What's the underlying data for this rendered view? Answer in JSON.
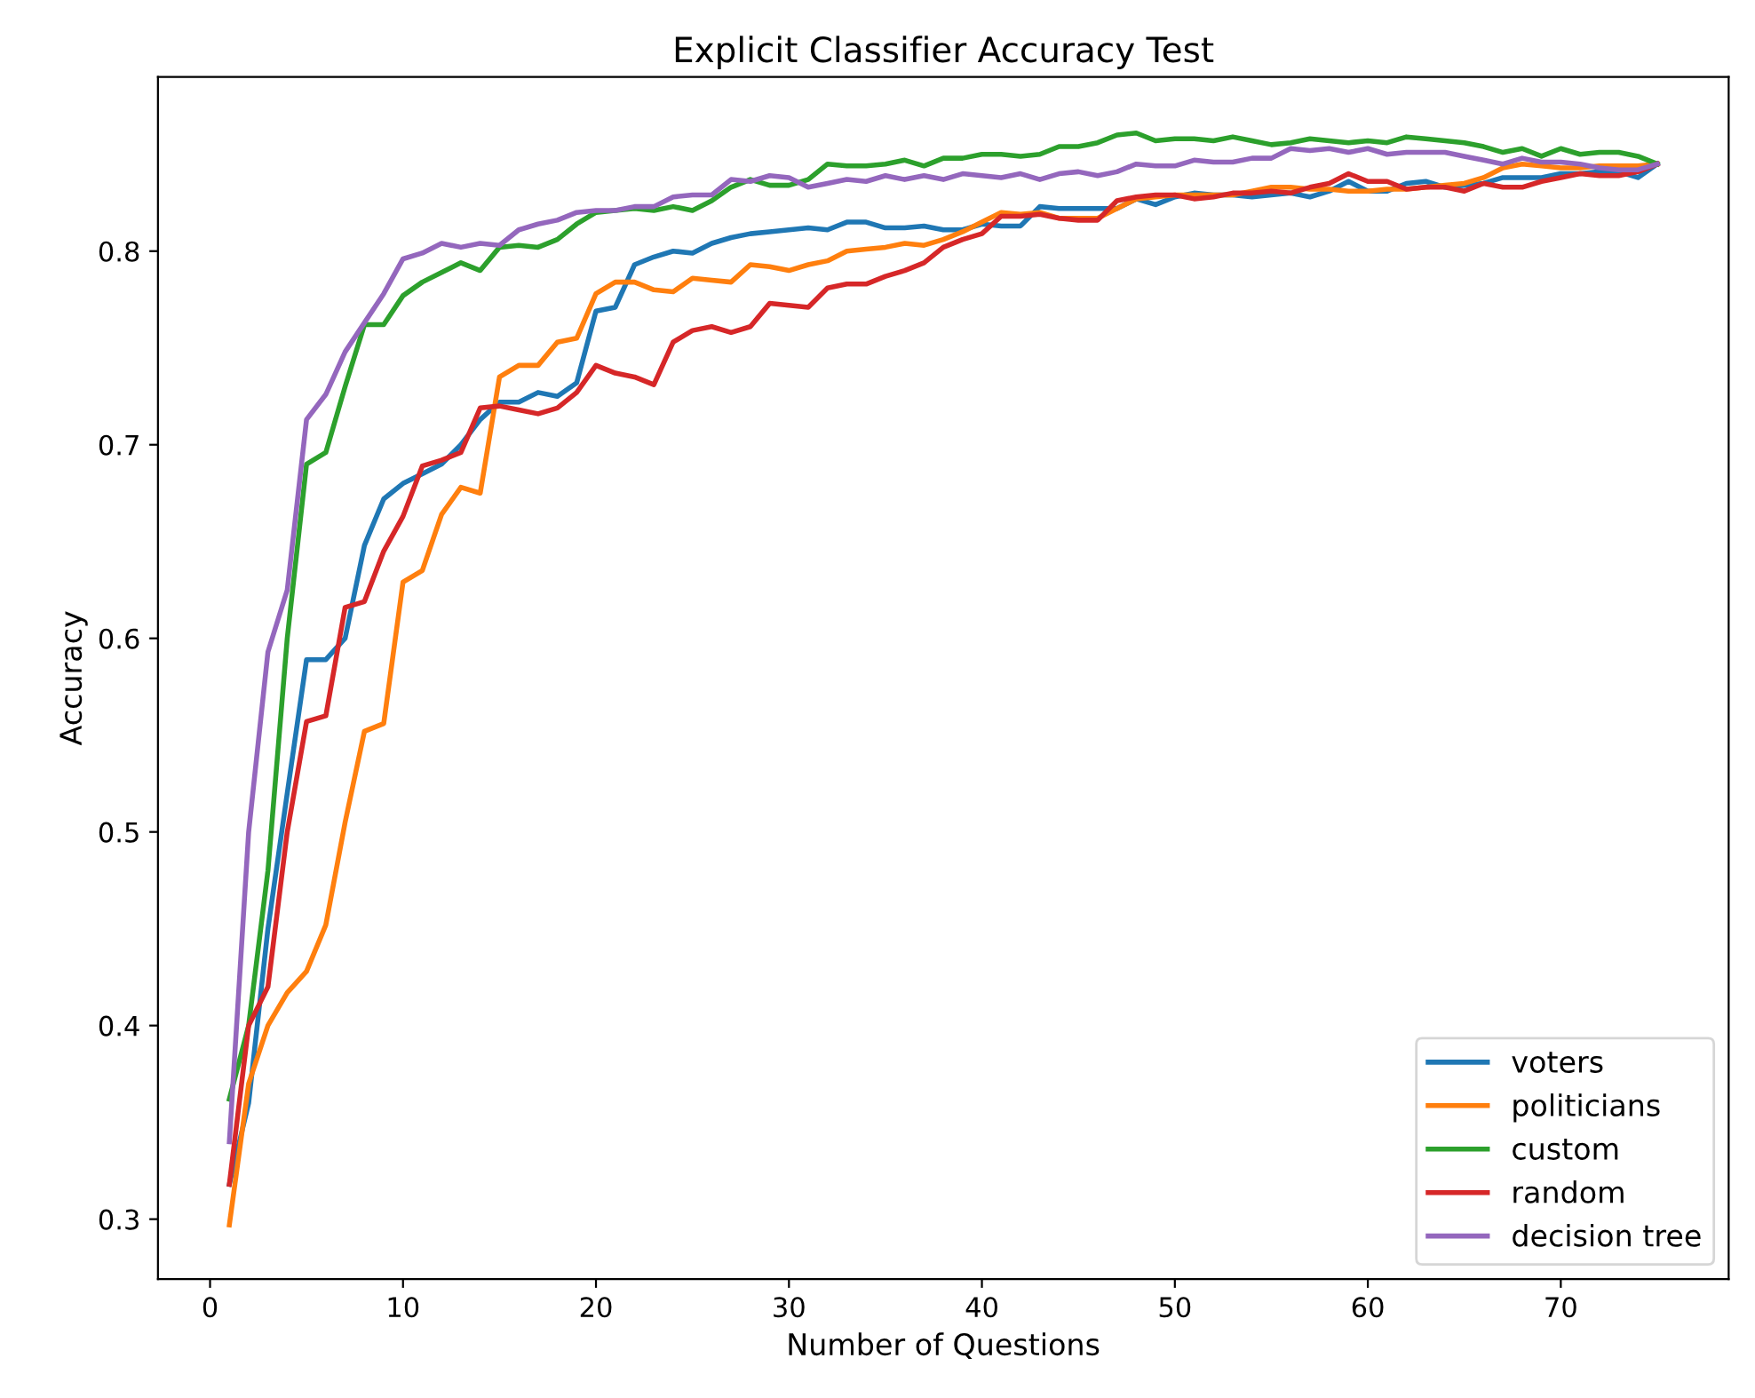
{
  "chart_data": {
    "type": "line",
    "title": "Explicit Classifier Accuracy Test",
    "xlabel": "Number of Questions",
    "ylabel": "Accuracy",
    "x": [
      1,
      2,
      3,
      4,
      5,
      6,
      7,
      8,
      9,
      10,
      11,
      12,
      13,
      14,
      15,
      16,
      17,
      18,
      19,
      20,
      21,
      22,
      23,
      24,
      25,
      26,
      27,
      28,
      29,
      30,
      31,
      32,
      33,
      34,
      35,
      36,
      37,
      38,
      39,
      40,
      41,
      42,
      43,
      44,
      45,
      46,
      47,
      48,
      49,
      50,
      51,
      52,
      53,
      54,
      55,
      56,
      57,
      58,
      59,
      60,
      61,
      62,
      63,
      64,
      65,
      66,
      67,
      68,
      69,
      70,
      71,
      72,
      73,
      74,
      75
    ],
    "series": [
      {
        "name": "voters",
        "color": "#1f77b4",
        "values": [
          0.318,
          0.36,
          0.45,
          0.52,
          0.589,
          0.589,
          0.6,
          0.648,
          0.672,
          0.68,
          0.685,
          0.69,
          0.7,
          0.713,
          0.722,
          0.722,
          0.727,
          0.725,
          0.732,
          0.769,
          0.771,
          0.793,
          0.797,
          0.8,
          0.799,
          0.804,
          0.807,
          0.809,
          0.81,
          0.811,
          0.812,
          0.811,
          0.815,
          0.815,
          0.812,
          0.812,
          0.813,
          0.811,
          0.811,
          0.814,
          0.813,
          0.813,
          0.823,
          0.822,
          0.822,
          0.822,
          0.822,
          0.827,
          0.824,
          0.828,
          0.83,
          0.829,
          0.829,
          0.828,
          0.829,
          0.83,
          0.828,
          0.831,
          0.836,
          0.831,
          0.831,
          0.835,
          0.836,
          0.833,
          0.834,
          0.835,
          0.838,
          0.838,
          0.838,
          0.84,
          0.84,
          0.841,
          0.841,
          0.838,
          0.845
        ]
      },
      {
        "name": "politicians",
        "color": "#ff7f0e",
        "values": [
          0.297,
          0.37,
          0.4,
          0.417,
          0.428,
          0.452,
          0.505,
          0.552,
          0.556,
          0.629,
          0.635,
          0.664,
          0.678,
          0.675,
          0.735,
          0.741,
          0.741,
          0.753,
          0.755,
          0.778,
          0.784,
          0.784,
          0.78,
          0.779,
          0.786,
          0.785,
          0.784,
          0.793,
          0.792,
          0.79,
          0.793,
          0.795,
          0.8,
          0.801,
          0.802,
          0.804,
          0.803,
          0.806,
          0.81,
          0.815,
          0.82,
          0.819,
          0.82,
          0.817,
          0.817,
          0.817,
          0.822,
          0.827,
          0.828,
          0.829,
          0.829,
          0.829,
          0.829,
          0.831,
          0.833,
          0.833,
          0.832,
          0.832,
          0.831,
          0.831,
          0.832,
          0.832,
          0.833,
          0.834,
          0.835,
          0.838,
          0.843,
          0.845,
          0.844,
          0.843,
          0.843,
          0.844,
          0.844,
          0.844,
          0.845
        ]
      },
      {
        "name": "custom",
        "color": "#2ca02c",
        "values": [
          0.362,
          0.4,
          0.48,
          0.6,
          0.69,
          0.696,
          0.73,
          0.762,
          0.762,
          0.777,
          0.784,
          0.789,
          0.794,
          0.79,
          0.802,
          0.803,
          0.802,
          0.806,
          0.814,
          0.82,
          0.821,
          0.822,
          0.821,
          0.823,
          0.821,
          0.826,
          0.833,
          0.837,
          0.834,
          0.834,
          0.837,
          0.845,
          0.844,
          0.844,
          0.845,
          0.847,
          0.844,
          0.848,
          0.848,
          0.85,
          0.85,
          0.849,
          0.85,
          0.854,
          0.854,
          0.856,
          0.86,
          0.861,
          0.857,
          0.858,
          0.858,
          0.857,
          0.859,
          0.857,
          0.855,
          0.856,
          0.858,
          0.857,
          0.856,
          0.857,
          0.856,
          0.859,
          0.858,
          0.857,
          0.856,
          0.854,
          0.851,
          0.853,
          0.849,
          0.853,
          0.85,
          0.851,
          0.851,
          0.849,
          0.845
        ]
      },
      {
        "name": "random",
        "color": "#d62728",
        "values": [
          0.318,
          0.4,
          0.42,
          0.5,
          0.557,
          0.56,
          0.616,
          0.619,
          0.645,
          0.663,
          0.689,
          0.692,
          0.696,
          0.719,
          0.72,
          0.718,
          0.716,
          0.719,
          0.727,
          0.741,
          0.737,
          0.735,
          0.731,
          0.753,
          0.759,
          0.761,
          0.758,
          0.761,
          0.773,
          0.772,
          0.771,
          0.781,
          0.783,
          0.783,
          0.787,
          0.79,
          0.794,
          0.802,
          0.806,
          0.809,
          0.818,
          0.818,
          0.819,
          0.817,
          0.816,
          0.816,
          0.826,
          0.828,
          0.829,
          0.829,
          0.827,
          0.828,
          0.83,
          0.83,
          0.831,
          0.83,
          0.833,
          0.835,
          0.84,
          0.836,
          0.836,
          0.832,
          0.833,
          0.833,
          0.831,
          0.835,
          0.833,
          0.833,
          0.836,
          0.838,
          0.84,
          0.839,
          0.839,
          0.841,
          0.845
        ]
      },
      {
        "name": "decision tree",
        "color": "#9467bd",
        "values": [
          0.34,
          0.5,
          0.593,
          0.625,
          0.713,
          0.726,
          0.748,
          0.763,
          0.778,
          0.796,
          0.799,
          0.804,
          0.802,
          0.804,
          0.803,
          0.811,
          0.814,
          0.816,
          0.82,
          0.821,
          0.821,
          0.823,
          0.823,
          0.828,
          0.829,
          0.829,
          0.837,
          0.836,
          0.839,
          0.838,
          0.833,
          0.835,
          0.837,
          0.836,
          0.839,
          0.837,
          0.839,
          0.837,
          0.84,
          0.839,
          0.838,
          0.84,
          0.837,
          0.84,
          0.841,
          0.839,
          0.841,
          0.845,
          0.844,
          0.844,
          0.847,
          0.846,
          0.846,
          0.848,
          0.848,
          0.853,
          0.852,
          0.853,
          0.851,
          0.853,
          0.85,
          0.851,
          0.851,
          0.851,
          0.849,
          0.847,
          0.845,
          0.848,
          0.846,
          0.846,
          0.845,
          0.843,
          0.842,
          0.842,
          0.845
        ]
      }
    ],
    "xlim": [
      -2.7,
      78.7
    ],
    "xticks": [
      0,
      10,
      20,
      30,
      40,
      50,
      60,
      70
    ],
    "ylim": [
      0.269,
      0.89
    ],
    "yticks": [
      0.3,
      0.4,
      0.5,
      0.6,
      0.7,
      0.8
    ],
    "legend": "bottom right",
    "grid": false,
    "marker": "none",
    "line_style": "solid"
  }
}
